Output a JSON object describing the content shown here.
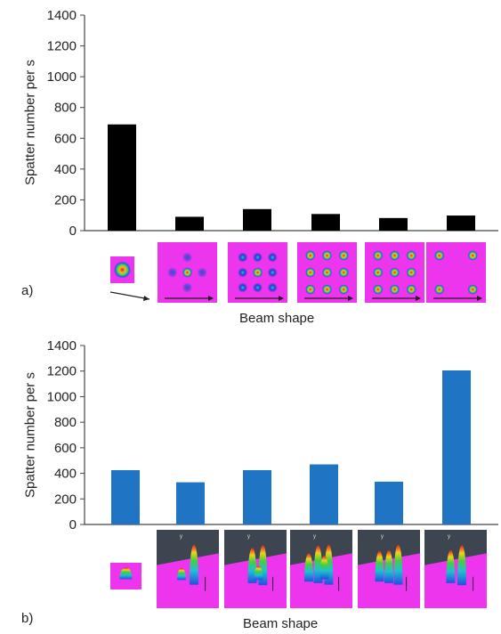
{
  "chart_data": [
    {
      "type": "bar",
      "panel_label": "a)",
      "xlabel": "Beam shape",
      "ylabel": "Spatter number per s",
      "ylim": [
        0,
        1400
      ],
      "yticks": [
        "0",
        "200",
        "400",
        "600",
        "800",
        "1000",
        "1200",
        "1400"
      ],
      "bar_color": "#000000",
      "grid": false,
      "values": [
        690,
        90,
        140,
        108,
        82,
        98
      ],
      "thumbnail_style": "2D magenta beam intensity maps with scan-direction arrow"
    },
    {
      "type": "bar",
      "panel_label": "b)",
      "xlabel": "Beam shape",
      "ylabel": "Spatter number per s",
      "ylim": [
        0,
        1400
      ],
      "yticks": [
        "0",
        "200",
        "400",
        "600",
        "800",
        "1000",
        "1200",
        "1400"
      ],
      "bar_color": "#1f74c4",
      "grid": false,
      "values": [
        425,
        330,
        425,
        470,
        335,
        1205
      ],
      "thumbnail_style": "3D beam intensity profiles on magenta plane"
    }
  ]
}
